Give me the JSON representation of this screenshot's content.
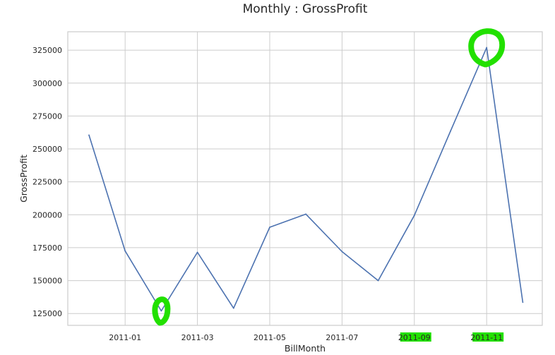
{
  "chart_data": {
    "type": "line",
    "title": "Monthly : GrossProfit",
    "xlabel": "BillMonth",
    "ylabel": "GrossProfit",
    "x": [
      "2010-12",
      "2011-01",
      "2011-02",
      "2011-03",
      "2011-04",
      "2011-05",
      "2011-06",
      "2011-07",
      "2011-08",
      "2011-09",
      "2011-10",
      "2011-11",
      "2011-12"
    ],
    "series": [
      {
        "values": [
          260500,
          172500,
          127000,
          171500,
          129000,
          190500,
          200500,
          172000,
          150000,
          199500,
          263500,
          327000,
          133500
        ]
      }
    ],
    "ylim": [
      116000,
      339000
    ],
    "yticks": [
      125000,
      150000,
      175000,
      200000,
      225000,
      250000,
      275000,
      300000,
      325000
    ],
    "xticks": [
      "2011-01",
      "2011-03",
      "2011-05",
      "2011-07",
      "2011-09",
      "2011-11"
    ],
    "grid": true,
    "colors": {
      "line": "#4c72b0",
      "grid": "#cccccc",
      "highlight": "#22e000"
    },
    "highlights": [
      {
        "kind": "circle",
        "point": "2011-02"
      },
      {
        "kind": "circle",
        "point": "2011-11"
      },
      {
        "kind": "tick-box",
        "tick": "2011-09"
      },
      {
        "kind": "tick-box",
        "tick": "2011-11"
      }
    ]
  }
}
